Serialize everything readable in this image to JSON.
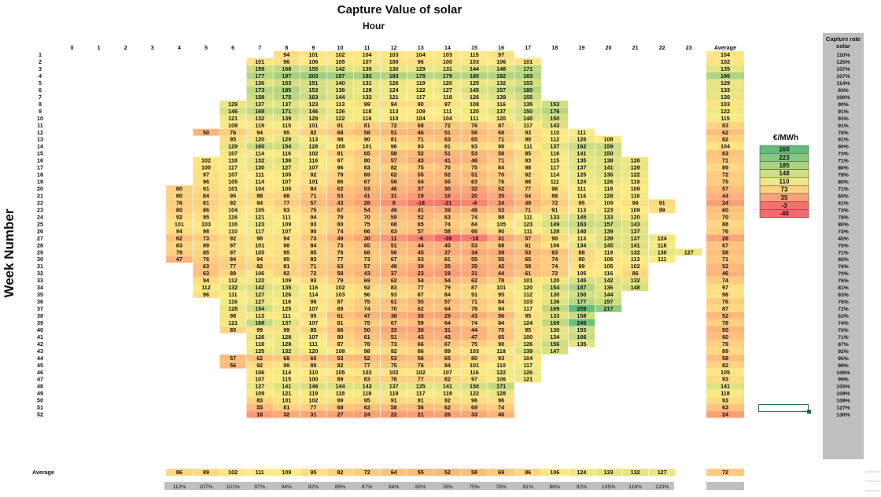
{
  "chart_data": {
    "type": "heatmap",
    "title": "Capture Value of solar",
    "xlabel": "Hour",
    "ylabel": "Week Number",
    "average_label": "Average",
    "hours": [
      0,
      1,
      2,
      3,
      4,
      5,
      6,
      7,
      8,
      9,
      10,
      11,
      12,
      13,
      14,
      15,
      16,
      17,
      18,
      19,
      20,
      21,
      22,
      23
    ],
    "weeks": [
      1,
      2,
      3,
      4,
      5,
      6,
      7,
      8,
      9,
      10,
      11,
      12,
      13,
      14,
      15,
      16,
      17,
      18,
      19,
      20,
      21,
      22,
      23,
      24,
      25,
      26,
      27,
      28,
      29,
      30,
      31,
      32,
      33,
      34,
      35,
      36,
      37,
      38,
      39,
      40,
      41,
      42,
      43,
      44,
      45,
      46,
      47,
      48,
      49,
      50,
      51,
      52
    ],
    "rows": [
      {
        "s": 8,
        "v": [
          94,
          101,
          102,
          104,
          103,
          104,
          103,
          115,
          97
        ],
        "avg": "104",
        "rate": "110%"
      },
      {
        "s": 7,
        "v": [
          101,
          96,
          106,
          105,
          107,
          100,
          96,
          100,
          103,
          106,
          101
        ],
        "avg": "102",
        "rate": "125%"
      },
      {
        "s": 7,
        "v": [
          159,
          168,
          155,
          142,
          135,
          130,
          129,
          131,
          144,
          148,
          171
        ],
        "avg": "135",
        "rate": "107%"
      },
      {
        "s": 7,
        "v": [
          177,
          197,
          203,
          197,
          192,
          183,
          178,
          179,
          180,
          182,
          183
        ],
        "avg": "186",
        "rate": "107%"
      },
      {
        "s": 7,
        "v": [
          136,
          153,
          151,
          140,
          131,
          126,
          119,
          120,
          125,
          132,
          153
        ],
        "avg": "129",
        "rate": "114%"
      },
      {
        "s": 7,
        "v": [
          173,
          185,
          153,
          136,
          128,
          124,
          122,
          127,
          145,
          157,
          180
        ],
        "avg": "133",
        "rate": "93%"
      },
      {
        "s": 7,
        "v": [
          158,
          175,
          163,
          144,
          132,
          121,
          117,
          118,
          126,
          139,
          155
        ],
        "avg": "130",
        "rate": "100%"
      },
      {
        "s": 6,
        "v": [
          129,
          137,
          137,
          123,
          113,
          99,
          94,
          90,
          97,
          108,
          116,
          135,
          153
        ],
        "avg": "103",
        "rate": "90%"
      },
      {
        "s": 6,
        "v": [
          146,
          168,
          171,
          146,
          126,
          118,
          113,
          109,
          111,
          120,
          137,
          150,
          176
        ],
        "avg": "122",
        "rate": "91%"
      },
      {
        "s": 6,
        "v": [
          121,
          132,
          139,
          129,
          122,
          116,
          110,
          104,
          104,
          111,
          120,
          140,
          150
        ],
        "avg": "115",
        "rate": "93%"
      },
      {
        "s": 6,
        "v": [
          108,
          119,
          115,
          101,
          91,
          81,
          72,
          68,
          72,
          76,
          87,
          117,
          143
        ],
        "avg": "83",
        "rate": "91%"
      },
      {
        "s": 5,
        "v": [
          50,
          76,
          94,
          95,
          82,
          68,
          58,
          51,
          46,
          51,
          58,
          68,
          93,
          110,
          111
        ],
        "avg": "62",
        "rate": "76%"
      },
      {
        "s": 6,
        "v": [
          95,
          120,
          129,
          113,
          98,
          90,
          81,
          71,
          63,
          65,
          71,
          90,
          112,
          126,
          108
        ],
        "avg": "82",
        "rate": "91%"
      },
      {
        "s": 6,
        "v": [
          129,
          160,
          154,
          128,
          109,
          101,
          96,
          93,
          91,
          93,
          98,
          111,
          137,
          162,
          159
        ],
        "avg": "104",
        "rate": "90%"
      },
      {
        "s": 6,
        "v": [
          107,
          114,
          116,
          102,
          81,
          65,
          58,
          52,
          51,
          53,
          58,
          85,
          116,
          141,
          150
        ],
        "avg": "63",
        "rate": "73%"
      },
      {
        "s": 5,
        "v": [
          102,
          118,
          132,
          136,
          116,
          97,
          80,
          57,
          43,
          41,
          46,
          71,
          93,
          115,
          135,
          138,
          126
        ],
        "avg": "71",
        "rate": "71%"
      },
      {
        "s": 5,
        "v": [
          100,
          117,
          130,
          127,
          107,
          96,
          83,
          82,
          75,
          70,
          75,
          84,
          98,
          117,
          137,
          141,
          129
        ],
        "avg": "89",
        "rate": "86%"
      },
      {
        "s": 5,
        "v": [
          97,
          107,
          111,
          105,
          92,
          79,
          69,
          62,
          55,
          52,
          51,
          70,
          92,
          114,
          125,
          135,
          122
        ],
        "avg": "72",
        "rate": "78%"
      },
      {
        "s": 5,
        "v": [
          96,
          105,
          114,
          107,
          101,
          86,
          67,
          59,
          54,
          55,
          63,
          76,
          88,
          111,
          124,
          126,
          119
        ],
        "avg": "75",
        "rate": "80%"
      },
      {
        "s": 4,
        "v": [
          80,
          91,
          101,
          104,
          100,
          84,
          62,
          53,
          46,
          37,
          30,
          32,
          52,
          77,
          96,
          111,
          118,
          108
        ],
        "avg": "57",
        "rate": "71%"
      },
      {
        "s": 4,
        "v": [
          80,
          84,
          95,
          88,
          88,
          71,
          53,
          41,
          31,
          19,
          16,
          20,
          35,
          64,
          88,
          116,
          128,
          116
        ],
        "avg": "44",
        "rate": "60%"
      },
      {
        "s": 4,
        "v": [
          76,
          81,
          92,
          94,
          77,
          57,
          43,
          28,
          8,
          -18,
          -21,
          -9,
          24,
          49,
          72,
          95,
          109,
          99,
          91
        ],
        "avg": "24",
        "rate": "41%"
      },
      {
        "s": 4,
        "v": [
          80,
          86,
          104,
          105,
          93,
          75,
          67,
          54,
          49,
          41,
          39,
          48,
          53,
          71,
          91,
          113,
          123,
          109,
          99
        ],
        "avg": "60",
        "rate": "74%"
      },
      {
        "s": 4,
        "v": [
          92,
          95,
          116,
          121,
          111,
          94,
          79,
          70,
          59,
          52,
          63,
          74,
          88,
          111,
          133,
          145,
          133,
          120
        ],
        "avg": "70",
        "rate": "78%"
      },
      {
        "s": 4,
        "v": [
          101,
          103,
          116,
          123,
          109,
          93,
          80,
          75,
          68,
          65,
          74,
          84,
          105,
          123,
          149,
          163,
          157,
          143
        ],
        "avg": "88",
        "rate": "80%"
      },
      {
        "s": 4,
        "v": [
          94,
          98,
          110,
          117,
          107,
          90,
          74,
          66,
          63,
          57,
          58,
          66,
          90,
          111,
          128,
          140,
          139,
          137
        ],
        "avg": "76",
        "rate": "74%"
      },
      {
        "s": 4,
        "v": [
          62,
          73,
          92,
          98,
          94,
          73,
          49,
          30,
          11,
          -8,
          -39,
          -18,
          31,
          57,
          90,
          113,
          139,
          137,
          124
        ],
        "avg": "28",
        "rate": "45%"
      },
      {
        "s": 4,
        "v": [
          83,
          89,
          97,
          101,
          98,
          84,
          73,
          65,
          51,
          44,
          45,
          53,
          68,
          81,
          106,
          134,
          145,
          141,
          118
        ],
        "avg": "67",
        "rate": "75%"
      },
      {
        "s": 4,
        "v": [
          79,
          85,
          97,
          105,
          95,
          85,
          76,
          68,
          56,
          45,
          37,
          34,
          39,
          53,
          63,
          88,
          119,
          132,
          130,
          127
        ],
        "avg": "58",
        "rate": "71%"
      },
      {
        "s": 4,
        "v": [
          47,
          76,
          84,
          94,
          95,
          83,
          77,
          73,
          67,
          63,
          61,
          55,
          55,
          65,
          74,
          90,
          106,
          113,
          111
        ],
        "avg": "71",
        "rate": "85%"
      },
      {
        "s": 5,
        "v": [
          63,
          77,
          82,
          81,
          71,
          63,
          57,
          49,
          39,
          35,
          35,
          42,
          58,
          74,
          99,
          105,
          102
        ],
        "avg": "52",
        "rate": "76%"
      },
      {
        "s": 5,
        "v": [
          63,
          89,
          106,
          82,
          72,
          58,
          43,
          37,
          23,
          19,
          31,
          44,
          61,
          72,
          105,
          116,
          86
        ],
        "avg": "46",
        "rate": "70%"
      },
      {
        "s": 5,
        "v": [
          94,
          112,
          122,
          109,
          93,
          79,
          69,
          62,
          54,
          54,
          62,
          78,
          101,
          120,
          145,
          142,
          132
        ],
        "avg": "74",
        "rate": "76%"
      },
      {
        "s": 5,
        "v": [
          112,
          132,
          142,
          135,
          116,
          102,
          92,
          83,
          77,
          79,
          87,
          101,
          120,
          154,
          187,
          136,
          148
        ],
        "avg": "97",
        "rate": "81%"
      },
      {
        "s": 5,
        "v": [
          96,
          111,
          127,
          126,
          114,
          103,
          96,
          93,
          87,
          84,
          91,
          95,
          112,
          130,
          150,
          144
        ],
        "avg": "98",
        "rate": "83%"
      },
      {
        "s": 6,
        "v": [
          116,
          127,
          116,
          98,
          87,
          75,
          61,
          55,
          57,
          71,
          84,
          103,
          136,
          177,
          157
        ],
        "avg": "76",
        "rate": "76%"
      },
      {
        "s": 6,
        "v": [
          128,
          154,
          125,
          107,
          89,
          74,
          70,
          62,
          64,
          78,
          94,
          117,
          169,
          259,
          217
        ],
        "avg": "87",
        "rate": "72%"
      },
      {
        "s": 6,
        "v": [
          98,
          113,
          111,
          95,
          61,
          47,
          38,
          30,
          29,
          43,
          56,
          95,
          133,
          158
        ],
        "avg": "52",
        "rate": "63%"
      },
      {
        "s": 6,
        "v": [
          121,
          168,
          137,
          107,
          81,
          75,
          67,
          59,
          64,
          74,
          84,
          124,
          169,
          249
        ],
        "avg": "78",
        "rate": "74%"
      },
      {
        "s": 6,
        "v": [
          85,
          99,
          99,
          85,
          66,
          50,
          33,
          30,
          31,
          44,
          70,
          95,
          130,
          153
        ],
        "avg": "50",
        "rate": "70%"
      },
      {
        "s": 7,
        "v": [
          126,
          128,
          107,
          80,
          61,
          51,
          43,
          43,
          47,
          65,
          100,
          134,
          166
        ],
        "avg": "60",
        "rate": "71%"
      },
      {
        "s": 7,
        "v": [
          118,
          128,
          111,
          87,
          78,
          73,
          66,
          67,
          75,
          90,
          126,
          156,
          135
        ],
        "avg": "79",
        "rate": "87%"
      },
      {
        "s": 7,
        "v": [
          125,
          132,
          120,
          108,
          98,
          92,
          86,
          89,
          103,
          118,
          139,
          147
        ],
        "avg": "89",
        "rate": "92%"
      },
      {
        "s": 6,
        "v": [
          57,
          62,
          68,
          60,
          53,
          52,
          53,
          56,
          65,
          80,
          93,
          104
        ],
        "avg": "58",
        "rate": "95%"
      },
      {
        "s": 6,
        "v": [
          56,
          92,
          99,
          89,
          82,
          77,
          75,
          76,
          84,
          101,
          110,
          117
        ],
        "avg": "82",
        "rate": "99%"
      },
      {
        "s": 7,
        "v": [
          106,
          114,
          110,
          105,
          102,
          102,
          102,
          107,
          116,
          122,
          126
        ],
        "avg": "105",
        "rate": "106%"
      },
      {
        "s": 7,
        "v": [
          107,
          115,
          100,
          89,
          83,
          78,
          77,
          82,
          97,
          106,
          121
        ],
        "avg": "93",
        "rate": "99%"
      },
      {
        "s": 7,
        "v": [
          127,
          141,
          146,
          144,
          143,
          137,
          135,
          141,
          150,
          171
        ],
        "avg": "141",
        "rate": "105%"
      },
      {
        "s": 7,
        "v": [
          109,
          121,
          119,
          118,
          118,
          118,
          117,
          119,
          122,
          128
        ],
        "avg": "118",
        "rate": "109%"
      },
      {
        "s": 7,
        "v": [
          83,
          101,
          102,
          99,
          95,
          91,
          91,
          92,
          96,
          96
        ],
        "avg": "93",
        "rate": "109%"
      },
      {
        "s": 7,
        "v": [
          55,
          81,
          77,
          68,
          62,
          58,
          56,
          62,
          69,
          74
        ],
        "avg": "63",
        "rate": "127%"
      },
      {
        "s": 7,
        "v": [
          16,
          32,
          31,
          27,
          24,
          22,
          21,
          26,
          33,
          46
        ],
        "avg": "24",
        "rate": "130%"
      }
    ],
    "hour_average": {
      "s": 4,
      "v": [
        86,
        89,
        102,
        111,
        109,
        95,
        82,
        72,
        64,
        55,
        52,
        58,
        69,
        86,
        106,
        124,
        133,
        132,
        127
      ],
      "avg": "72"
    },
    "hour_rate": {
      "s": 4,
      "v": [
        "112%",
        "107%",
        "101%",
        "97%",
        "94%",
        "92%",
        "89%",
        "87%",
        "84%",
        "80%",
        "76%",
        "75%",
        "78%",
        "81%",
        "86%",
        "92%",
        "105%",
        "116%",
        "120%"
      ]
    },
    "legend": {
      "title": "€/MWh",
      "items": [
        {
          "label": "260",
          "color": "#63be7b"
        },
        {
          "label": "223",
          "color": "#86c97e"
        },
        {
          "label": "185",
          "color": "#aad580"
        },
        {
          "label": "148",
          "color": "#cde182"
        },
        {
          "label": "110",
          "color": "#f1ea84"
        },
        {
          "label": "73",
          "color": "#fed280"
        },
        {
          "label": "35",
          "color": "#fba276"
        },
        {
          "label": "-3",
          "color": "#f8716b"
        },
        {
          "label": "-40",
          "color": "#f8696b"
        }
      ]
    },
    "capture_rate_title": "Capture rate solar",
    "color_scale": {
      "min": -40,
      "mid": 110,
      "max": 260,
      "min_color": "#f8696b",
      "mid_color": "#ffeb84",
      "max_color": "#63be7b"
    }
  }
}
